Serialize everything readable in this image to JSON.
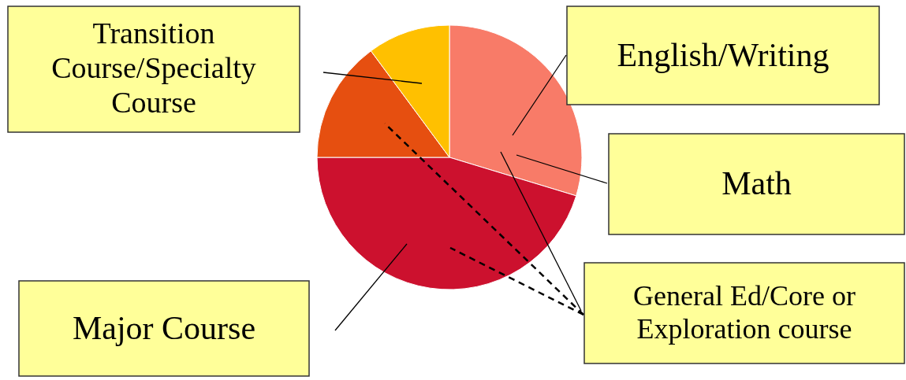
{
  "chart_data": {
    "type": "pie",
    "categories": [
      null,
      null,
      null,
      null
    ],
    "values": [
      29.7,
      45.3,
      14.9,
      10.1
    ],
    "colors": [
      "#f87b68",
      "#cc112e",
      "#e64f10",
      "#ffc000"
    ],
    "annotations": [
      "Transition Course/Specialty Course",
      "English/Writing",
      "Math",
      "General Ed/Core or Exploration course",
      "Major Course"
    ]
  }
}
